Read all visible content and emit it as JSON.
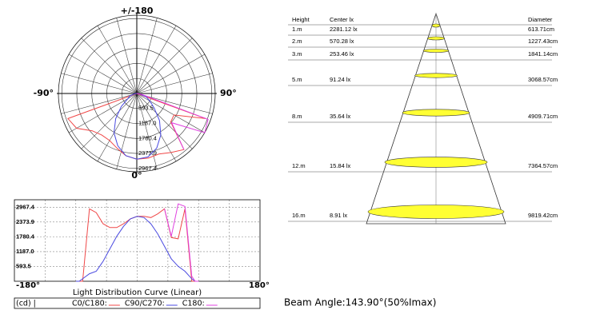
{
  "chart_data": [
    {
      "type": "polar",
      "top_label": "+/-180",
      "left_label": "-90°",
      "right_label": "90°",
      "bottom_label": "0°",
      "rlim": [
        0,
        3100
      ],
      "rticks": [
        {
          "value": 593.5,
          "label": "593.5"
        },
        {
          "value": 1187.0,
          "label": "1187.0"
        },
        {
          "value": 1780.4,
          "label": "1780.4"
        },
        {
          "value": 2373.9,
          "label": "2373.9"
        },
        {
          "value": 2967.4,
          "label": "2967.4"
        }
      ],
      "x": [
        -90,
        -85,
        -80,
        -70,
        -60,
        -50,
        -40,
        -30,
        -20,
        -10,
        0,
        10,
        20,
        30,
        40,
        50,
        60,
        70,
        80,
        85,
        90
      ],
      "series": [
        {
          "color": "#f04848",
          "values": [
            0,
            0,
            0,
            2900,
            2750,
            2300,
            2150,
            2150,
            2300,
            2500,
            2600,
            2600,
            2550,
            2700,
            2900,
            1750,
            1700,
            2900,
            0,
            0,
            0
          ]
        },
        {
          "color": "#4a4ae0",
          "values": [
            0,
            0,
            100,
            300,
            400,
            800,
            1300,
            1800,
            2200,
            2500,
            2600,
            2550,
            2300,
            1900,
            1400,
            900,
            600,
            400,
            100,
            0,
            0
          ]
        },
        {
          "color": "#e040e0",
          "values": [
            null,
            null,
            null,
            null,
            null,
            null,
            null,
            null,
            null,
            null,
            null,
            null,
            null,
            null,
            2900,
            1800,
            3100,
            3000,
            200,
            0,
            0
          ]
        }
      ]
    },
    {
      "type": "line",
      "title": "Light Distribution Curve (Linear)",
      "unit_label": "(cd) |",
      "xlim": [
        -180,
        180
      ],
      "ylim": [
        0,
        3265
      ],
      "xticks": [
        {
          "value": -180,
          "label": "-180°"
        },
        {
          "value": 180,
          "label": "180°"
        }
      ],
      "yticks": [
        {
          "value": 593.5,
          "label": "593.5"
        },
        {
          "value": 1187.0,
          "label": "1187.0"
        },
        {
          "value": 1780.4,
          "label": "1780.4"
        },
        {
          "value": 2373.9,
          "label": "2373.9"
        },
        {
          "value": 2967.4,
          "label": "2967.4"
        }
      ],
      "grid": true,
      "x": [
        -90,
        -85,
        -80,
        -70,
        -60,
        -50,
        -40,
        -30,
        -20,
        -10,
        0,
        10,
        20,
        30,
        40,
        50,
        60,
        70,
        80,
        85,
        90
      ],
      "series": [
        {
          "name": "C0/C180:",
          "color": "#f04848",
          "values": [
            0,
            0,
            0,
            2900,
            2750,
            2300,
            2150,
            2150,
            2300,
            2500,
            2600,
            2600,
            2550,
            2700,
            2900,
            1750,
            1700,
            2900,
            0,
            0,
            0
          ]
        },
        {
          "name": "C90/C270:",
          "color": "#4a4ae0",
          "values": [
            0,
            0,
            100,
            300,
            400,
            800,
            1300,
            1800,
            2200,
            2500,
            2600,
            2550,
            2300,
            1900,
            1400,
            900,
            600,
            400,
            100,
            0,
            0
          ]
        },
        {
          "name": "C180:",
          "color": "#e040e0",
          "values": [
            null,
            null,
            null,
            null,
            null,
            null,
            null,
            null,
            null,
            null,
            null,
            null,
            null,
            null,
            2900,
            1800,
            3100,
            3000,
            200,
            0,
            0
          ]
        }
      ]
    }
  ],
  "beam_table": {
    "headers": [
      "Height",
      "Center lx",
      "Diameter"
    ],
    "rows": [
      [
        "1.m",
        "2281.12 lx",
        "613.71cm"
      ],
      [
        "2.m",
        "570.28 lx",
        "1227.43cm"
      ],
      [
        "3.m",
        "253.46 lx",
        "1841.14cm"
      ],
      [
        "5.m",
        "91.24 lx",
        "3068.57cm"
      ],
      [
        "8.m",
        "35.64 lx",
        "4909.71cm"
      ],
      [
        "12.m",
        "15.84 lx",
        "7364.57cm"
      ],
      [
        "16.m",
        "8.91 lx",
        "9819.42cm"
      ]
    ],
    "beam_angle": "Beam Angle:143.90°(50%Imax)"
  }
}
